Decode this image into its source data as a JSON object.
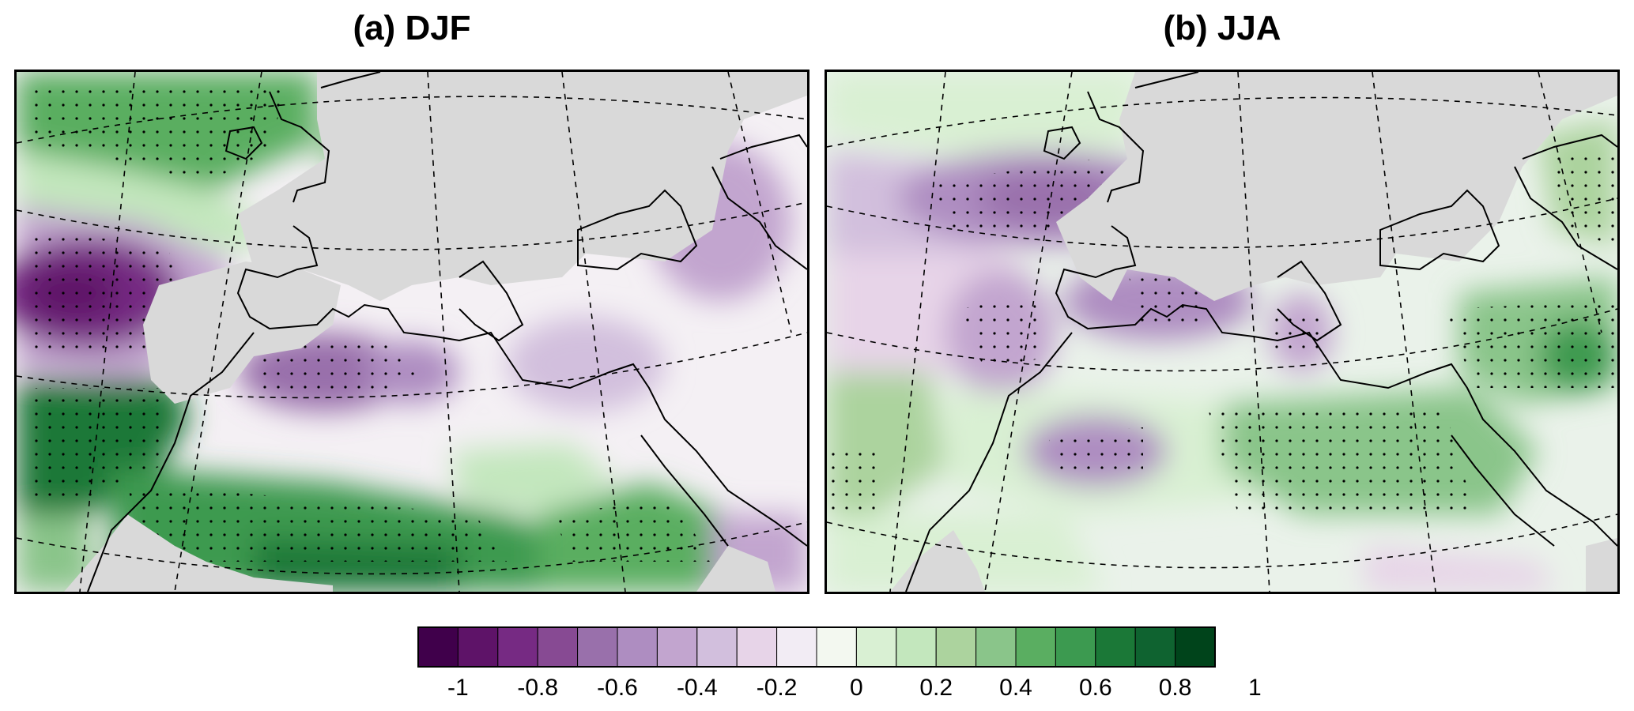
{
  "panels": [
    {
      "id": "a",
      "title": "(a) DJF"
    },
    {
      "id": "b",
      "title": "(b) JJA"
    }
  ],
  "colorbar": {
    "ticks": [
      "-1",
      "-0.8",
      "-0.6",
      "-0.4",
      "-0.2",
      "0",
      "0.2",
      "0.4",
      "0.6",
      "0.8",
      "1"
    ],
    "colors": [
      "#40004b",
      "#5e1368",
      "#762a83",
      "#874a93",
      "#9970ab",
      "#ae8dc1",
      "#c2a5cf",
      "#d2bfdd",
      "#e7d4e8",
      "#f2ecf4",
      "#f3f8f0",
      "#d9f0d3",
      "#c3e7bd",
      "#acd39e",
      "#8ac58a",
      "#5aae61",
      "#3c9a50",
      "#1b7837",
      "#0f6330",
      "#00441b"
    ]
  },
  "colors": {
    "land_masked": "#d9d9d9",
    "coastline": "#000000",
    "stippling": "#000000"
  }
}
